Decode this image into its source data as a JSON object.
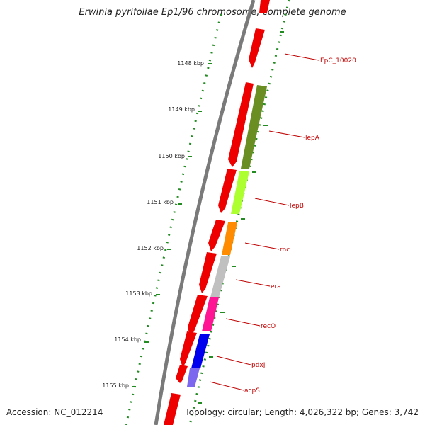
{
  "title": "Erwinia pyrifoliae Ep1/96 chromosome, complete genome",
  "footer": {
    "accession": "Accession: NC_012214",
    "topology": "Topology: circular; Length: 4,026,322 bp; Genes: 3,742"
  },
  "kbp_labels": [
    "1148 kbp",
    "1149 kbp",
    "1150 kbp",
    "1151 kbp",
    "1152 kbp",
    "1153 kbp",
    "1154 kbp",
    "1155 kbp"
  ],
  "gene_labels": [
    "EpC_10020",
    "lepA",
    "lepB",
    "rnc",
    "era",
    "recO",
    "pdxJ",
    "acpS"
  ],
  "colors": {
    "backbone": "#7a7a7a",
    "forward_cds": "#ee0000",
    "tick": "#228b22",
    "label": "#c00000",
    "lepA": "#6b8e23",
    "lepB": "#adff2f",
    "rnc": "#ff8c00",
    "era": "#c0c0c0",
    "recO": "#ff1493",
    "pdxJ": "#0000ee",
    "acpS": "#7b68ee"
  }
}
